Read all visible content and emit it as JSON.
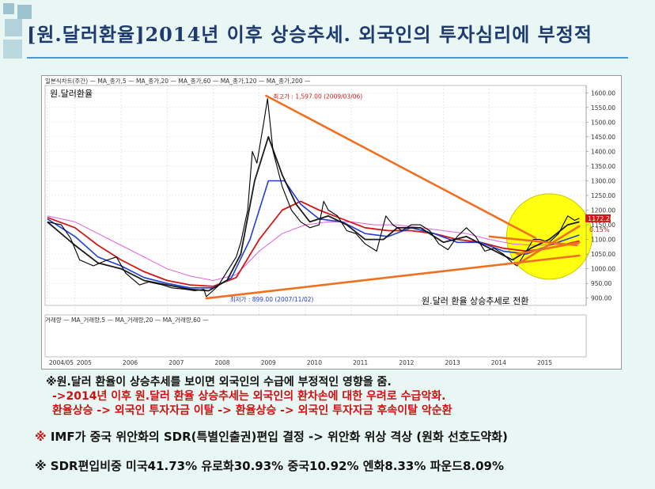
{
  "title": "[원.달러환율]2014년 이후 상승추세. 외국인의 투자심리에 부정적",
  "chart_data": {
    "type": "line",
    "legend_top": "일본식차트(주간) — MA_종가,5 — MA_종가,20 — MA_종가,60 — MA_종가,120 — MA_종가,200 —",
    "legend_vol": "거래량 — MA_거래량,5 — MA_거래량,20 — MA_거래량,60 —",
    "series_label": "원.달러환율",
    "x_years": [
      "2004/05",
      "2005",
      "2006",
      "2007",
      "2008",
      "2009",
      "2010",
      "2011",
      "2012",
      "2013",
      "2014",
      "2015"
    ],
    "y_ticks": [
      900,
      950,
      1000,
      1050,
      1100,
      1150,
      1200,
      1250,
      1300,
      1350,
      1400,
      1450,
      1500,
      1550,
      1600
    ],
    "ylim": [
      875,
      1625
    ],
    "high_label": "최고가 : 1,597.00 (2009/03/06)",
    "low_label": "최저가 : 899.00 (2007/11/02)",
    "current_value": "1172.20",
    "current_change": "0.15%",
    "annotation": "원.달러 환율 상승추세로 전환",
    "series": [
      {
        "name": "원.달러환율",
        "values": [
          [
            2004.4,
            1160
          ],
          [
            2004.7,
            1150
          ],
          [
            2004.9,
            1105
          ],
          [
            2005.1,
            1030
          ],
          [
            2005.4,
            1010
          ],
          [
            2005.7,
            1030
          ],
          [
            2005.9,
            1040
          ],
          [
            2006.1,
            985
          ],
          [
            2006.4,
            945
          ],
          [
            2006.6,
            955
          ],
          [
            2006.9,
            945
          ],
          [
            2007.1,
            935
          ],
          [
            2007.4,
            930
          ],
          [
            2007.6,
            925
          ],
          [
            2007.8,
            930
          ],
          [
            2007.85,
            905
          ],
          [
            2008.1,
            940
          ],
          [
            2008.3,
            990
          ],
          [
            2008.5,
            1040
          ],
          [
            2008.6,
            1090
          ],
          [
            2008.75,
            1200
          ],
          [
            2008.85,
            1400
          ],
          [
            2008.95,
            1360
          ],
          [
            2009.1,
            1500
          ],
          [
            2009.18,
            1580
          ],
          [
            2009.3,
            1400
          ],
          [
            2009.5,
            1280
          ],
          [
            2009.7,
            1200
          ],
          [
            2009.9,
            1160
          ],
          [
            2010.1,
            1140
          ],
          [
            2010.3,
            1150
          ],
          [
            2010.4,
            1230
          ],
          [
            2010.5,
            1200
          ],
          [
            2010.7,
            1180
          ],
          [
            2010.9,
            1130
          ],
          [
            2011.1,
            1120
          ],
          [
            2011.3,
            1085
          ],
          [
            2011.55,
            1060
          ],
          [
            2011.75,
            1180
          ],
          [
            2011.9,
            1150
          ],
          [
            2012.1,
            1130
          ],
          [
            2012.3,
            1150
          ],
          [
            2012.5,
            1150
          ],
          [
            2012.7,
            1130
          ],
          [
            2012.9,
            1085
          ],
          [
            2013.1,
            1065
          ],
          [
            2013.3,
            1110
          ],
          [
            2013.5,
            1140
          ],
          [
            2013.7,
            1110
          ],
          [
            2013.9,
            1060
          ],
          [
            2014.1,
            1070
          ],
          [
            2014.3,
            1050
          ],
          [
            2014.5,
            1020
          ],
          [
            2014.6,
            1010
          ],
          [
            2014.8,
            1060
          ],
          [
            2014.95,
            1100
          ],
          [
            2015.1,
            1100
          ],
          [
            2015.3,
            1090
          ],
          [
            2015.5,
            1120
          ],
          [
            2015.7,
            1180
          ],
          [
            2015.85,
            1165
          ],
          [
            2015.95,
            1172
          ]
        ]
      },
      {
        "name": "MA_종가,20",
        "values": [
          [
            2004.4,
            1160
          ],
          [
            2005.0,
            1080
          ],
          [
            2005.5,
            1020
          ],
          [
            2006.0,
            1000
          ],
          [
            2006.5,
            960
          ],
          [
            2007.0,
            945
          ],
          [
            2007.5,
            930
          ],
          [
            2007.9,
            925
          ],
          [
            2008.3,
            960
          ],
          [
            2008.6,
            1050
          ],
          [
            2008.9,
            1300
          ],
          [
            2009.2,
            1450
          ],
          [
            2009.5,
            1320
          ],
          [
            2009.8,
            1220
          ],
          [
            2010.1,
            1160
          ],
          [
            2010.5,
            1180
          ],
          [
            2010.9,
            1150
          ],
          [
            2011.3,
            1100
          ],
          [
            2011.7,
            1100
          ],
          [
            2012.0,
            1140
          ],
          [
            2012.5,
            1140
          ],
          [
            2013.0,
            1090
          ],
          [
            2013.5,
            1110
          ],
          [
            2014.0,
            1070
          ],
          [
            2014.5,
            1030
          ],
          [
            2014.9,
            1070
          ],
          [
            2015.3,
            1100
          ],
          [
            2015.7,
            1150
          ],
          [
            2015.95,
            1160
          ]
        ]
      },
      {
        "name": "MA_종가,60",
        "values": [
          [
            2004.4,
            1170
          ],
          [
            2005.0,
            1110
          ],
          [
            2005.5,
            1040
          ],
          [
            2006.0,
            1010
          ],
          [
            2006.5,
            970
          ],
          [
            2007.0,
            950
          ],
          [
            2007.5,
            935
          ],
          [
            2008.0,
            935
          ],
          [
            2008.4,
            970
          ],
          [
            2008.8,
            1100
          ],
          [
            2009.2,
            1300
          ],
          [
            2009.55,
            1300
          ],
          [
            2009.9,
            1220
          ],
          [
            2010.3,
            1170
          ],
          [
            2010.8,
            1160
          ],
          [
            2011.3,
            1120
          ],
          [
            2011.8,
            1110
          ],
          [
            2012.3,
            1140
          ],
          [
            2012.8,
            1120
          ],
          [
            2013.3,
            1090
          ],
          [
            2013.8,
            1090
          ],
          [
            2014.3,
            1060
          ],
          [
            2014.8,
            1050
          ],
          [
            2015.3,
            1080
          ],
          [
            2015.95,
            1115
          ]
        ]
      },
      {
        "name": "MA_종가,120",
        "values": [
          [
            2004.4,
            1175
          ],
          [
            2005.0,
            1140
          ],
          [
            2005.5,
            1080
          ],
          [
            2006.0,
            1030
          ],
          [
            2006.5,
            990
          ],
          [
            2007.0,
            960
          ],
          [
            2007.5,
            945
          ],
          [
            2008.0,
            940
          ],
          [
            2008.5,
            970
          ],
          [
            2009.0,
            1100
          ],
          [
            2009.5,
            1200
          ],
          [
            2009.9,
            1230
          ],
          [
            2010.3,
            1200
          ],
          [
            2010.8,
            1170
          ],
          [
            2011.3,
            1140
          ],
          [
            2011.8,
            1130
          ],
          [
            2012.3,
            1130
          ],
          [
            2012.8,
            1120
          ],
          [
            2013.3,
            1100
          ],
          [
            2013.8,
            1090
          ],
          [
            2014.3,
            1070
          ],
          [
            2014.8,
            1060
          ],
          [
            2015.3,
            1070
          ],
          [
            2015.95,
            1095
          ]
        ]
      },
      {
        "name": "MA_종가,200",
        "values": [
          [
            2004.4,
            1180
          ],
          [
            2005.0,
            1160
          ],
          [
            2005.5,
            1120
          ],
          [
            2006.0,
            1080
          ],
          [
            2006.5,
            1040
          ],
          [
            2007.0,
            1000
          ],
          [
            2007.5,
            975
          ],
          [
            2008.0,
            960
          ],
          [
            2008.5,
            980
          ],
          [
            2009.0,
            1060
          ],
          [
            2009.5,
            1120
          ],
          [
            2010.0,
            1150
          ],
          [
            2010.5,
            1160
          ],
          [
            2011.0,
            1160
          ],
          [
            2011.5,
            1150
          ],
          [
            2012.0,
            1150
          ],
          [
            2012.5,
            1140
          ],
          [
            2013.0,
            1130
          ],
          [
            2013.5,
            1120
          ],
          [
            2014.0,
            1100
          ],
          [
            2014.5,
            1085
          ],
          [
            2015.0,
            1080
          ],
          [
            2015.95,
            1085
          ]
        ]
      }
    ]
  },
  "text": {
    "line1": "※원.달러 환율이 상승추세를 보이면 외국인의 수급에 부정적인 영향을 줌.",
    "line2": "->2014년 이후 원.달러 환율 상승추세는 외국인의 환차손에 대한 우려로 수급악화.",
    "line3": "환율상승 -> 외국인 투자자금 이탈 -> 환율상승 -> 외국인 투자자금 후속이탈 악순환",
    "line4_mark": "※",
    "line4": "IMF가 중국 위안화의 SDR(특별인출권)편입 결정 -> 위안화 위상 격상 (원화 선호도약화)",
    "line5": "※ SDR편입비중 미국41.73% 유로화30.93% 중국10.92% 엔화8.33% 파운드8.09%"
  },
  "colors": {
    "title": "#1e3a6e",
    "price": "#000000",
    "ma20": "#1a1a1a",
    "ma60": "#1f3fd6",
    "ma120": "#d01818",
    "ma200": "#e060e0",
    "trend": "#f07020",
    "highlight": "#ffff10",
    "red_text": "#d01010",
    "dark_text": "#111111"
  }
}
